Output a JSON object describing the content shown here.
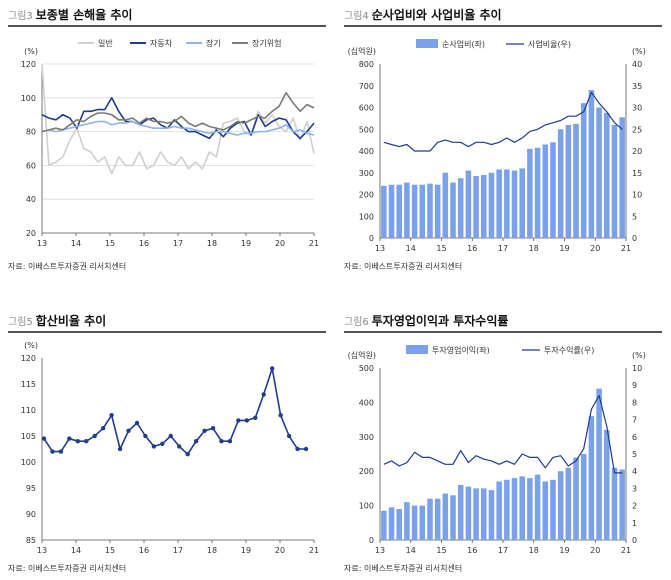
{
  "panels": [
    {
      "id": "p3",
      "fig_num": "그림3",
      "title": "보종별 손해율 추이",
      "source": "자료: 이베스트투자증권 리서치센터",
      "chart_data": {
        "type": "line",
        "title": "보종별 손해율 추이",
        "unit_left": "(%)",
        "ylim": [
          20,
          120
        ],
        "yticks": [
          "20",
          "40",
          "60",
          "80",
          "100",
          "120"
        ],
        "xticks": [
          "13",
          "14",
          "15",
          "16",
          "17",
          "18",
          "19",
          "20",
          "21"
        ],
        "grid": "horizontal",
        "legend": "top",
        "series": [
          {
            "name": "일반",
            "color": "#cfcfcf",
            "values": [
              120,
              60,
              62,
              65,
              75,
              82,
              70,
              68,
              62,
              65,
              55,
              65,
              60,
              60,
              68,
              58,
              60,
              68,
              62,
              60,
              65,
              58,
              62,
              58,
              68,
              65,
              85,
              86,
              88,
              80,
              78,
              92,
              85,
              90,
              83,
              80,
              88,
              75,
              86,
              67
            ]
          },
          {
            "name": "자동차",
            "color": "#1f3c8f",
            "values": [
              90,
              88,
              87,
              90,
              88,
              82,
              92,
              92,
              93,
              93,
              100,
              92,
              86,
              86,
              84,
              87,
              88,
              84,
              82,
              87,
              83,
              80,
              80,
              78,
              76,
              81,
              77,
              82,
              85,
              86,
              78,
              90,
              83,
              86,
              88,
              87,
              80,
              76,
              80,
              85
            ]
          },
          {
            "name": "장기",
            "color": "#8fb3ee",
            "values": [
              80,
              81,
              80,
              81,
              82,
              83,
              84,
              85,
              86,
              86,
              84,
              85,
              85,
              86,
              84,
              83,
              82,
              82,
              82,
              83,
              82,
              82,
              81,
              80,
              79,
              80,
              80,
              79,
              78,
              79,
              79,
              80,
              80,
              81,
              82,
              84,
              80,
              81,
              79,
              78
            ]
          },
          {
            "name": "장기위험",
            "color": "#7a7a7a",
            "values": [
              80,
              81,
              82,
              81,
              84,
              87,
              86,
              89,
              91,
              91,
              90,
              87,
              87,
              88,
              85,
              88,
              86,
              86,
              85,
              86,
              89,
              85,
              83,
              85,
              83,
              82,
              81,
              83,
              86,
              85,
              87,
              89,
              88,
              92,
              95,
              103,
              97,
              92,
              96,
              94
            ]
          }
        ]
      }
    },
    {
      "id": "p4",
      "fig_num": "그림4",
      "title": "순사업비와 사업비율 추이",
      "source": "자료: 이베스트투자증권 리서치센터",
      "chart_data": {
        "type": "bar+line",
        "unit_left": "(십억원)",
        "unit_right": "(%)",
        "ylim": [
          0,
          800
        ],
        "yticks": [
          "0",
          "100",
          "200",
          "300",
          "400",
          "500",
          "600",
          "700",
          "800"
        ],
        "y2lim": [
          0,
          40
        ],
        "y2ticks": [
          "0",
          "5",
          "10",
          "15",
          "20",
          "25",
          "30",
          "35",
          "40"
        ],
        "xticks": [
          "13",
          "14",
          "15",
          "16",
          "17",
          "18",
          "19",
          "20",
          "21"
        ],
        "legend": "top",
        "bar_series": {
          "name": "순사업비(좌)",
          "color": "#7aa1ea",
          "values": [
            240,
            245,
            245,
            255,
            245,
            245,
            250,
            245,
            300,
            255,
            275,
            310,
            285,
            290,
            300,
            315,
            315,
            310,
            320,
            410,
            415,
            430,
            440,
            500,
            520,
            525,
            620,
            680,
            600,
            575,
            520,
            555
          ]
        },
        "line_series": {
          "name": "사업비율(우)",
          "color": "#1f3c8f",
          "values": [
            22,
            21.5,
            21,
            21.5,
            20,
            20,
            20,
            22,
            22.5,
            22,
            22,
            21,
            22,
            22,
            21.5,
            22,
            23,
            22,
            23,
            24.5,
            25,
            26,
            26.5,
            27,
            28,
            28,
            29,
            33.5,
            31,
            29,
            26.5,
            25
          ]
        }
      }
    },
    {
      "id": "p5",
      "fig_num": "그림5",
      "title": "합산비율 추이",
      "source": "자료: 이베스트투자증권 리서치센터",
      "chart_data": {
        "type": "line",
        "unit_left": "(%)",
        "ylim": [
          85,
          120
        ],
        "yticks": [
          "85",
          "90",
          "95",
          "100",
          "105",
          "110",
          "115",
          "120"
        ],
        "xticks": [
          "13",
          "14",
          "15",
          "16",
          "17",
          "18",
          "19",
          "20",
          "21"
        ],
        "series": [
          {
            "name": "합산비율",
            "color": "#1f3c8f",
            "marker": "circle",
            "values": [
              104.5,
              102,
              102,
              104.5,
              104,
              104,
              105,
              106.5,
              109,
              102.5,
              106,
              107.5,
              105,
              103,
              103.5,
              105,
              103,
              101.5,
              104,
              106,
              106.5,
              104,
              104,
              108,
              108,
              108.5,
              113,
              118,
              109,
              105,
              102.5,
              102.5
            ]
          }
        ]
      }
    },
    {
      "id": "p6",
      "fig_num": "그림6",
      "title": "투자영업이익과 투자수익률",
      "source": "자료: 이베스트투자증권 리서치센터",
      "chart_data": {
        "type": "bar+line",
        "unit_left": "(십억원)",
        "unit_right": "(%)",
        "ylim": [
          0,
          500
        ],
        "yticks": [
          "0",
          "100",
          "200",
          "300",
          "400",
          "500"
        ],
        "y2lim": [
          0,
          10
        ],
        "y2ticks": [
          "0",
          "1",
          "2",
          "3",
          "4",
          "5",
          "6",
          "7",
          "8",
          "9",
          "10"
        ],
        "xticks": [
          "13",
          "14",
          "15",
          "16",
          "17",
          "18",
          "19",
          "20",
          "21"
        ],
        "legend": "top",
        "bar_series": {
          "name": "투자영업이익(좌)",
          "color": "#7aa1ea",
          "values": [
            85,
            95,
            90,
            110,
            100,
            100,
            120,
            120,
            135,
            130,
            160,
            155,
            150,
            150,
            145,
            170,
            175,
            180,
            185,
            180,
            190,
            170,
            175,
            200,
            210,
            240,
            250,
            360,
            440,
            320,
            210,
            205
          ]
        },
        "line_series": {
          "name": "투자수익률(우)",
          "color": "#1f3c8f",
          "values": [
            4.4,
            4.6,
            4.3,
            4.5,
            5.1,
            4.8,
            4.8,
            4.6,
            4.4,
            4.4,
            5.2,
            4.5,
            4.9,
            4.7,
            4.6,
            4.4,
            4.6,
            4.4,
            5.0,
            4.8,
            4.8,
            4.2,
            4.8,
            4.9,
            4.3,
            4.6,
            5.3,
            7.6,
            8.4,
            6.6,
            3.9,
            3.9
          ]
        }
      }
    }
  ]
}
